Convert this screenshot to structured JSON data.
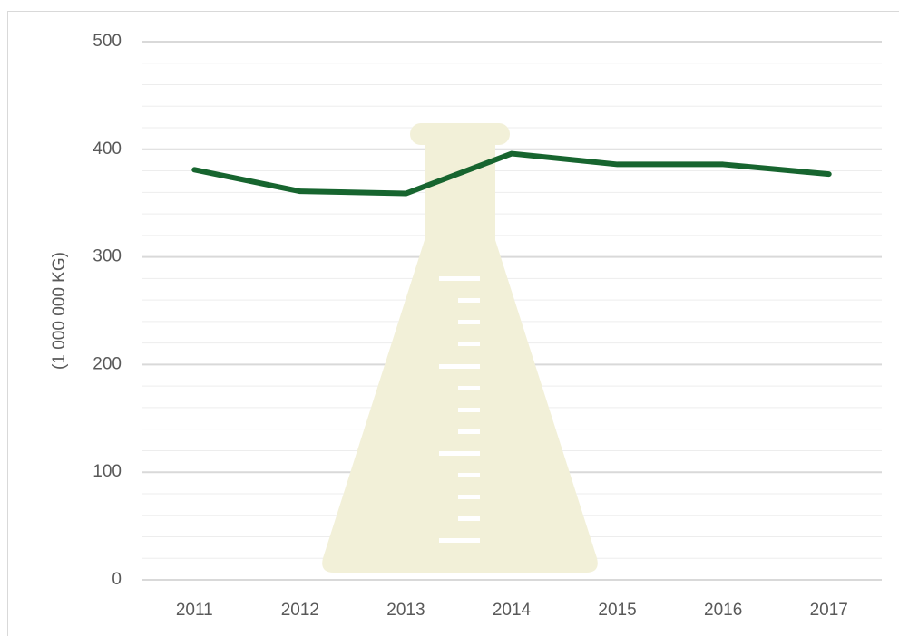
{
  "chart_data": {
    "type": "line",
    "ylabel": "(1 000 000 KG)",
    "categories": [
      "2011",
      "2012",
      "2013",
      "2014",
      "2015",
      "2016",
      "2017"
    ],
    "values": [
      381,
      361,
      359,
      396,
      386,
      386,
      377
    ],
    "color": "#17652f",
    "ylim": [
      0,
      500
    ],
    "yticks": [
      0,
      100,
      200,
      300,
      400,
      500
    ],
    "grid": true,
    "minor_grid": true
  }
}
